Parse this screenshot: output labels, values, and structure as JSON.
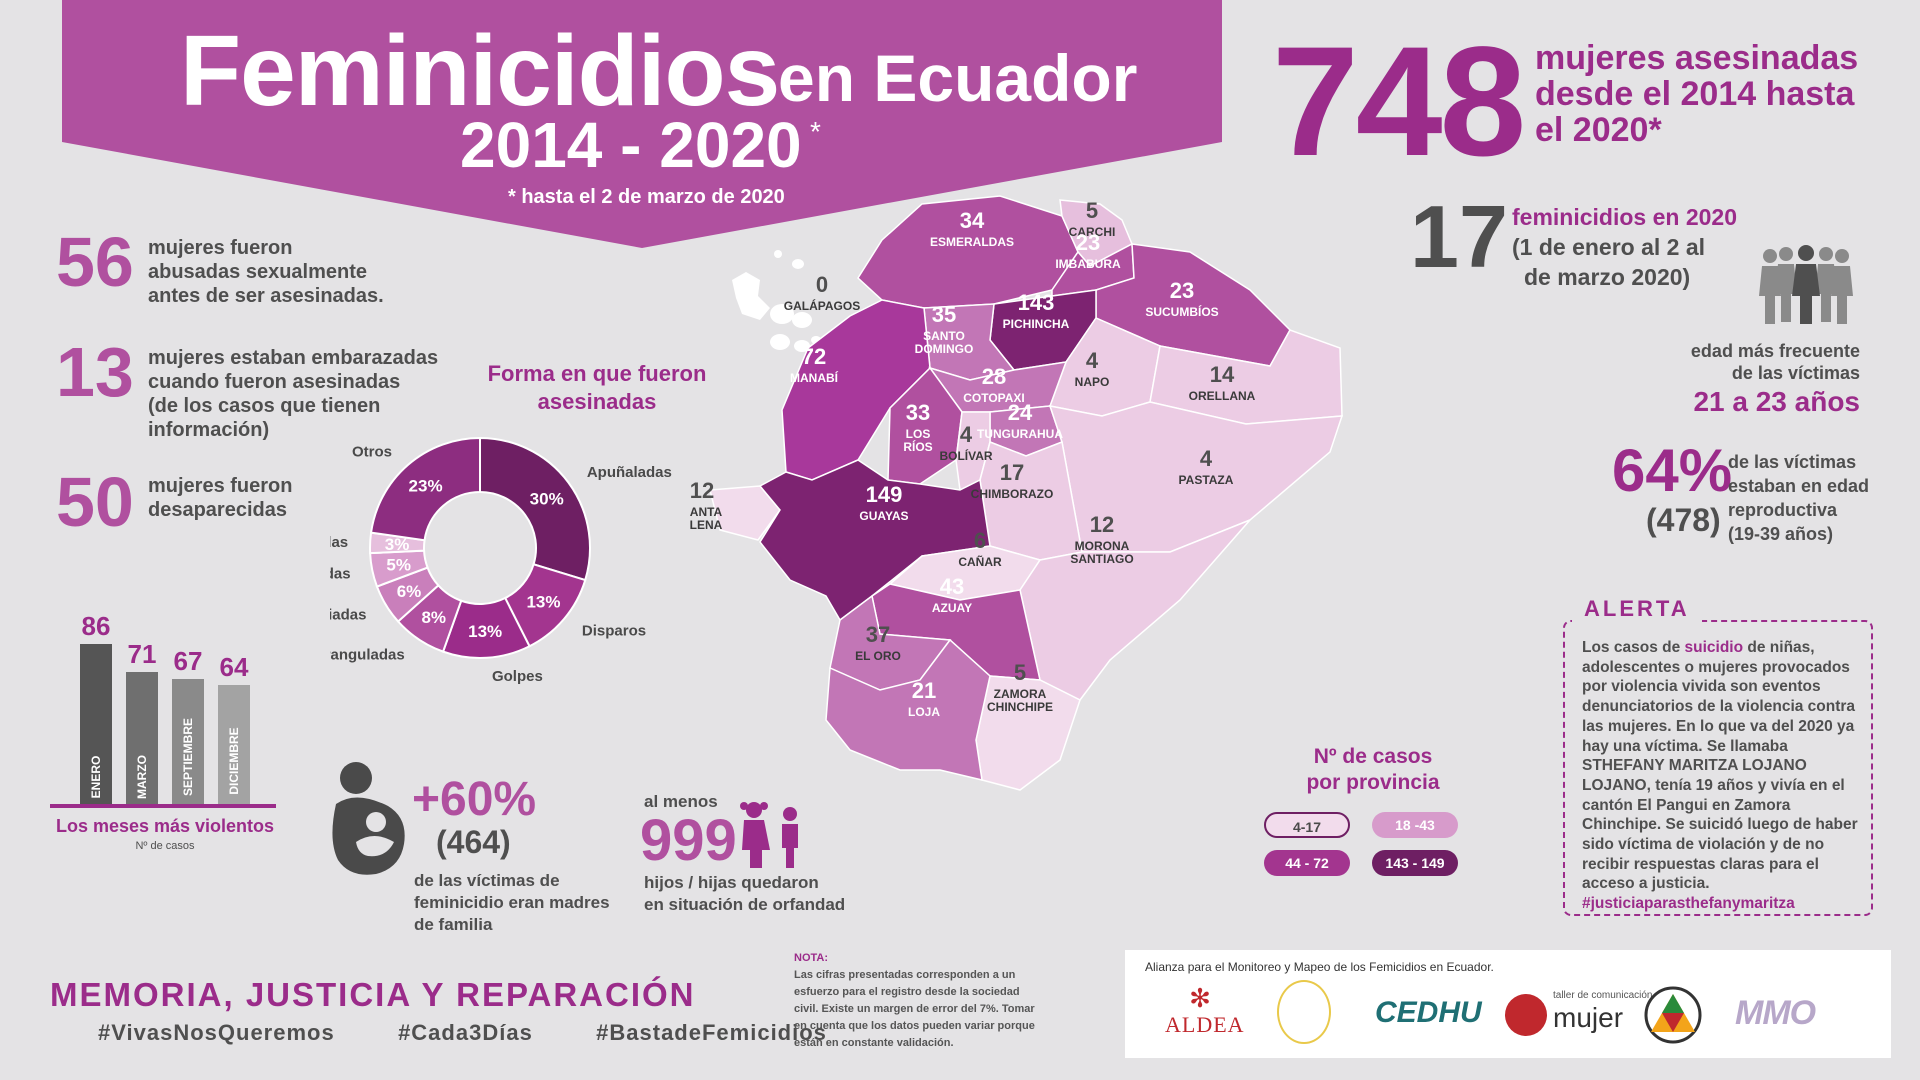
{
  "header": {
    "title": "Feminicidios",
    "subtitle": "en Ecuador",
    "years": "2014 - 2020",
    "star": "*",
    "note": "* hasta el 2 de marzo de 2020"
  },
  "headline": {
    "total": "748",
    "total_text": [
      "mujeres asesinadas",
      "desde el 2014 hasta",
      "el 2020*"
    ],
    "year_count": "17",
    "year_title": "feminicidios en 2020",
    "year_text": [
      "(1 de enero al 2 al",
      "de marzo 2020)"
    ]
  },
  "left_stats": [
    {
      "number": "56",
      "text": [
        "mujeres fueron",
        "abusadas sexualmente",
        "antes de ser asesinadas."
      ]
    },
    {
      "number": "13",
      "text": [
        "mujeres estaban embarazadas",
        "cuando fueron asesinadas",
        "(de los casos que tienen",
        "información)"
      ]
    },
    {
      "number": "50",
      "text": [
        "mujeres fueron",
        "desaparecidas"
      ]
    }
  ],
  "chart_data": [
    {
      "type": "pie",
      "title": "Forma en que fueron asesinadas",
      "categories": [
        "Apuñaladas",
        "Disparos",
        "Golpes",
        "Extranguladas",
        "Asfixiadas",
        "Ahorcadas",
        "Quemadas",
        "Otros"
      ],
      "values": [
        30,
        13,
        13,
        8,
        6,
        5,
        3,
        23
      ],
      "labels": [
        "30%",
        "13%",
        "13%",
        "8%",
        "6%",
        "5%",
        "3%",
        "23%"
      ],
      "colors": [
        "#6e1f63",
        "#a3358f",
        "#9b2c8a",
        "#b0509f",
        "#c97fbb",
        "#d89ccc",
        "#e6bfdd",
        "#8d2d80"
      ]
    },
    {
      "type": "bar",
      "title": "Los meses más violentos",
      "ylabel": "Nº de casos",
      "categories": [
        "ENERO",
        "MARZO",
        "SEPTIEMBRE",
        "DICIEMBRE"
      ],
      "values": [
        86,
        71,
        67,
        64
      ],
      "colors": [
        "#555555",
        "#6f6f6f",
        "#8a8a8a",
        "#a3a3a3"
      ]
    }
  ],
  "provinces": [
    {
      "name": "ESMERALDAS",
      "value": "34"
    },
    {
      "name": "CARCHI",
      "value": "5"
    },
    {
      "name": "IMBABURA",
      "value": "23"
    },
    {
      "name": "SUCUMBÍOS",
      "value": "23"
    },
    {
      "name": "PICHINCHA",
      "value": "143"
    },
    {
      "name": "SANTO",
      "name2": "DOMINGO",
      "value": "35"
    },
    {
      "name": "MANABÍ",
      "value": "72"
    },
    {
      "name": "NAPO",
      "value": "4"
    },
    {
      "name": "ORELLANA",
      "value": "14"
    },
    {
      "name": "COTOPAXI",
      "value": "28"
    },
    {
      "name": "LOS",
      "name2": "RÍOS",
      "value": "33"
    },
    {
      "name": "TUNGURAHUA",
      "value": "24"
    },
    {
      "name": "BOLÍVAR",
      "value": "4"
    },
    {
      "name": "PASTAZA",
      "value": "4"
    },
    {
      "name": "CHIMBORAZO",
      "value": "17"
    },
    {
      "name": "SANTA",
      "name2": "ELENA",
      "value": "12"
    },
    {
      "name": "GUAYAS",
      "value": "149"
    },
    {
      "name": "CAÑAR",
      "value": "6"
    },
    {
      "name": "MORONA",
      "name2": "SANTIAGO",
      "value": "12"
    },
    {
      "name": "AZUAY",
      "value": "43"
    },
    {
      "name": "EL ORO",
      "value": "37"
    },
    {
      "name": "ZAMORA",
      "name2": "CHINCHIPE",
      "value": "5"
    },
    {
      "name": "LOJA",
      "value": "21"
    },
    {
      "name": "GALÁPAGOS",
      "value": "0"
    }
  ],
  "map_legend": {
    "title": [
      "Nº de casos",
      "por provincia"
    ],
    "ranges": [
      "4-17",
      "18 -43",
      "44 - 72",
      "143 - 149"
    ],
    "colors": [
      "#f2dcec",
      "#d79bcb",
      "#a3358f",
      "#6e1f63"
    ]
  },
  "right_stats": {
    "age_label": [
      "edad más frecuente",
      "de las víctimas"
    ],
    "age_value": "21 a 23 años",
    "percent": "64%",
    "percent_count": "(478)",
    "percent_text": [
      "de las víctimas",
      "estaban en edad",
      "reproductiva",
      "(19-39 años)"
    ]
  },
  "alert": {
    "title": "ALERTA",
    "text_before": "Los casos de ",
    "highlight": "suicidio",
    "text_after": " de niñas, adolescentes o mujeres provocados por violencia vivida son eventos denunciatorios de la violencia contra las mujeres. En lo que va del 2020 ya hay una víctima. Se llamaba STHEFANY MARITZA LOJANO LOJANO, tenía 19 años y vivía en el cantón El Pangui en Zamora Chinchipe. Se suicidó luego de haber sido víctima de violación y de no recibir respuestas claras para el acceso a justicia.",
    "hashtag": "#justiciaparasthefanymaritza"
  },
  "mothers": {
    "percent": "+60%",
    "count": "(464)",
    "text": [
      "de las víctimas de",
      "feminicidio eran madres",
      "de familia"
    ]
  },
  "orphans": {
    "pre": "al menos",
    "number": "999",
    "text": [
      "hijos / hijas quedaron",
      "en situación de orfandad"
    ]
  },
  "footer": {
    "slogan": "MEMORIA, JUSTICIA Y REPARACIÓN",
    "hashtags": [
      "#VivasNosQueremos",
      "#Cada3Días",
      "#BastadeFemicidios"
    ],
    "note_title": "NOTA:",
    "note_text": [
      "Las cifras presentadas corresponden a un",
      "esfuerzo para el registro desde la sociedad",
      "civil. Existe un margen de error del 7%. Tomar",
      "en cuenta que los datos pueden variar porque",
      "están en constante validación."
    ]
  },
  "alliance": {
    "title": "Alianza para el Monitoreo y Mapeo de los Femicidios en Ecuador.",
    "logos": [
      "ALDEA",
      "CEDHU",
      "mujer",
      "MMO"
    ],
    "logo_small": "taller de comunicación"
  }
}
